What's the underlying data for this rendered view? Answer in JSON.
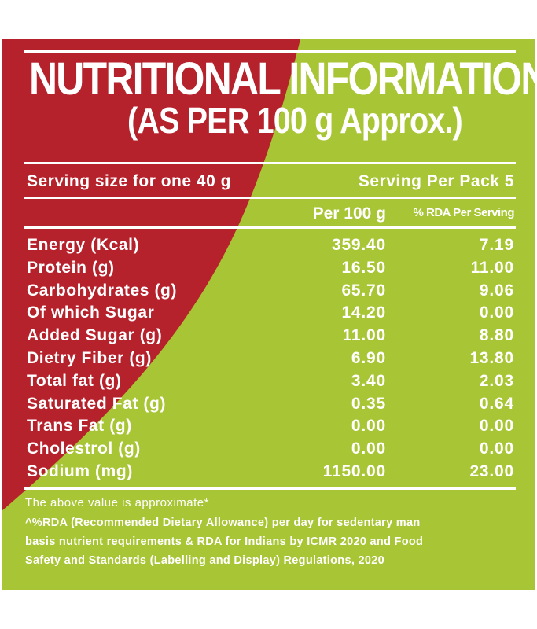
{
  "colors": {
    "red": "#b5222c",
    "green": "#a8c535",
    "text": "#ffffff"
  },
  "title": {
    "line1": "NUTRITIONAL INFORMATION",
    "line2": "(AS PER 100 g Approx.)"
  },
  "serving": {
    "size": "Serving size for one 40 g",
    "per_pack": "Serving Per Pack 5"
  },
  "columns": {
    "per100": "Per 100 g",
    "rda": "% RDA Per Serving"
  },
  "rows": [
    {
      "label": "Energy (Kcal)",
      "per100": "359.40",
      "rda": "7.19"
    },
    {
      "label": "Protein (g)",
      "per100": "16.50",
      "rda": "11.00"
    },
    {
      "label": "Carbohydrates (g)",
      "per100": "65.70",
      "rda": "9.06"
    },
    {
      "label": "Of which Sugar",
      "per100": "14.20",
      "rda": "0.00"
    },
    {
      "label": "Added Sugar (g)",
      "per100": "11.00",
      "rda": "8.80"
    },
    {
      "label": "Dietry Fiber (g)",
      "per100": "6.90",
      "rda": "13.80"
    },
    {
      "label": "Total fat (g)",
      "per100": "3.40",
      "rda": "2.03"
    },
    {
      "label": "Saturated Fat (g)",
      "per100": "0.35",
      "rda": "0.64"
    },
    {
      "label": "Trans Fat (g)",
      "per100": "0.00",
      "rda": "0.00"
    },
    {
      "label": "Cholestrol (g)",
      "per100": "0.00",
      "rda": "0.00"
    },
    {
      "label": "Sodium (mg)",
      "per100": "1150.00",
      "rda": "23.00"
    }
  ],
  "footer": {
    "note": "The above value is approximate*",
    "line1": "^%RDA (Recommended Dietary Allowance) per day for sedentary man",
    "line2": "basis nutrient requirements & RDA for Indians by ICMR 2020 and Food",
    "line3": "Safety and Standards (Labelling and Display) Regulations, 2020"
  }
}
